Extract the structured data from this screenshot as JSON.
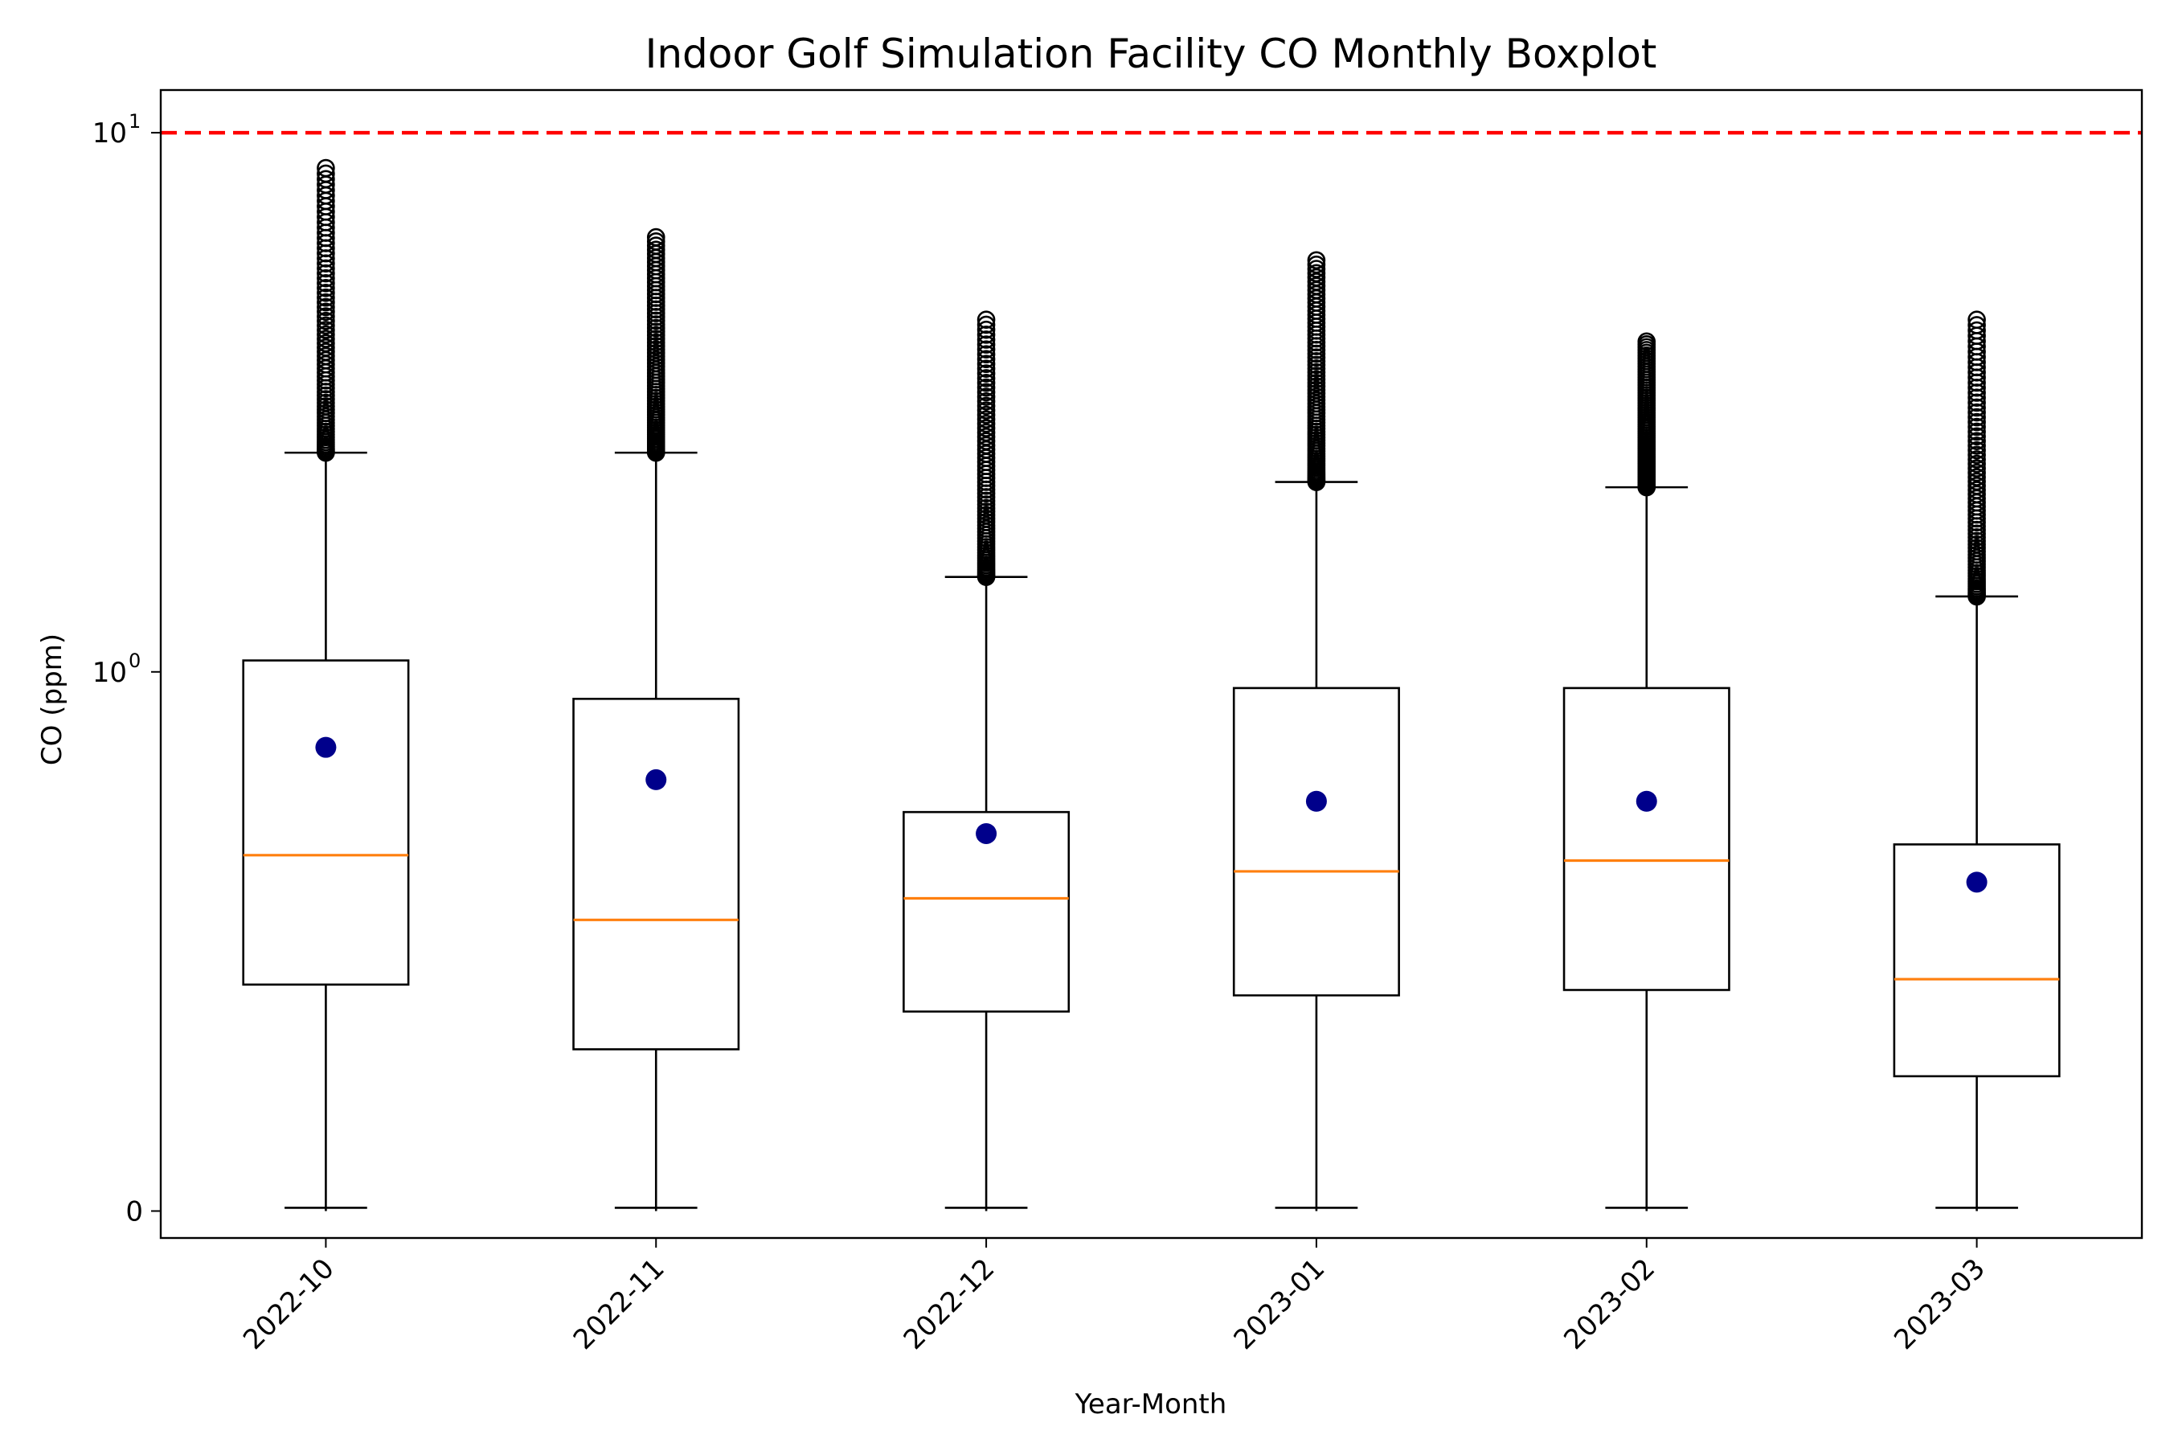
{
  "chart_data": {
    "type": "boxplot",
    "title": "Indoor Golf Simulation Facility CO Monthly Boxplot",
    "xlabel": "Year-Month",
    "ylabel": "CO (ppm)",
    "yscale": "symlog",
    "yticks": [
      {
        "value": 0,
        "base": "0",
        "exp": ""
      },
      {
        "value": 1,
        "base": "10",
        "exp": "0"
      },
      {
        "value": 10,
        "base": "10",
        "exp": "1"
      }
    ],
    "ylim": [
      -0.05,
      12
    ],
    "reference_line": {
      "value": 10,
      "color": "#ff0000",
      "style": "dashed"
    },
    "grid": false,
    "categories": [
      "2022-10",
      "2022-11",
      "2022-12",
      "2023-01",
      "2023-02",
      "2023-03"
    ],
    "boxes": [
      {
        "whislo": 0.0,
        "q1": 0.42,
        "median": 0.66,
        "q3": 1.05,
        "whishi": 2.55,
        "mean": 0.86,
        "fliers_min": 2.55,
        "fliers_max": 8.6
      },
      {
        "whislo": 0.0,
        "q1": 0.3,
        "median": 0.54,
        "q3": 0.95,
        "whishi": 2.55,
        "mean": 0.8,
        "fliers_min": 2.55,
        "fliers_max": 6.4
      },
      {
        "whislo": 0.0,
        "q1": 0.37,
        "median": 0.58,
        "q3": 0.74,
        "whishi": 1.5,
        "mean": 0.7,
        "fliers_min": 1.5,
        "fliers_max": 4.5
      },
      {
        "whislo": 0.0,
        "q1": 0.4,
        "median": 0.63,
        "q3": 0.97,
        "whishi": 2.25,
        "mean": 0.76,
        "fliers_min": 2.25,
        "fliers_max": 5.8
      },
      {
        "whislo": 0.0,
        "q1": 0.41,
        "median": 0.65,
        "q3": 0.97,
        "whishi": 2.2,
        "mean": 0.76,
        "fliers_min": 2.2,
        "fliers_max": 4.1
      },
      {
        "whislo": 0.0,
        "q1": 0.25,
        "median": 0.43,
        "q3": 0.68,
        "whishi": 1.38,
        "mean": 0.61,
        "fliers_min": 1.38,
        "fliers_max": 4.5
      }
    ],
    "colors": {
      "box": "#000000",
      "median": "#ff7f0e",
      "mean": "#00008b",
      "flier": "#000000"
    }
  }
}
